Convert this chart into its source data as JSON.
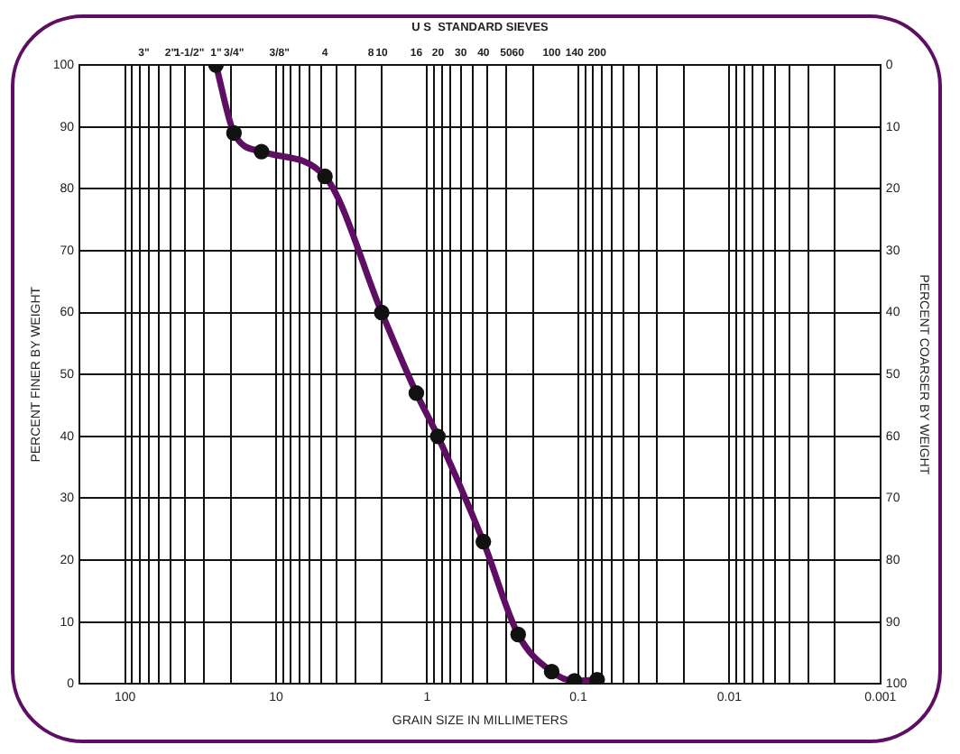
{
  "chart_data": {
    "type": "line",
    "xlabel": "GRAIN SIZE IN MILLIMETERS",
    "ylabel": "PERCENT FINER BY WEIGHT",
    "y2label": "PERCENT COARSER BY WEIGHT",
    "log": "x",
    "xlim": [
      200,
      0.001
    ],
    "xticks": [
      100,
      {
        "value": 90,
        "label": null
      },
      {
        "value": 80,
        "label": null
      },
      {
        "value": 70,
        "label": null
      },
      {
        "value": 60,
        "label": null
      },
      {
        "value": 50,
        "label": null
      },
      {
        "value": 40,
        "label": null
      },
      {
        "value": 30,
        "label": null
      },
      {
        "value": 20,
        "label": null
      },
      10,
      {
        "value": 9,
        "label": null
      },
      {
        "value": 8,
        "label": null
      },
      {
        "value": 7,
        "label": null
      },
      {
        "value": 6,
        "label": null
      },
      {
        "value": 5,
        "label": null
      },
      {
        "value": 4,
        "label": null
      },
      {
        "value": 3,
        "label": null
      },
      {
        "value": 2,
        "label": null
      },
      1,
      {
        "value": 0.9,
        "label": null
      },
      {
        "value": 0.8,
        "label": null
      },
      {
        "value": 0.7,
        "label": null
      },
      {
        "value": 0.6,
        "label": null
      },
      {
        "value": 0.5,
        "label": null
      },
      {
        "value": 0.4,
        "label": null
      },
      {
        "value": 0.3,
        "label": null
      },
      {
        "value": 0.2,
        "label": null
      },
      0.1,
      {
        "value": 0.09,
        "label": null
      },
      {
        "value": 0.08,
        "label": null
      },
      {
        "value": 0.07,
        "label": null
      },
      {
        "value": 0.06,
        "label": null
      },
      {
        "value": 0.05,
        "label": null
      },
      {
        "value": 0.04,
        "label": null
      },
      {
        "value": 0.03,
        "label": null
      },
      {
        "value": 0.02,
        "label": null
      },
      0.01,
      {
        "value": 0.009,
        "label": null
      },
      {
        "value": 0.008,
        "label": null
      },
      {
        "value": 0.007,
        "label": null
      },
      {
        "value": 0.006,
        "label": null
      },
      {
        "value": 0.005,
        "label": null
      },
      {
        "value": 0.004,
        "label": null
      },
      {
        "value": 0.003,
        "label": null
      },
      {
        "value": 0.002,
        "label": null
      },
      0.001
    ],
    "annotations": [
      "U S  STANDARD SIEVES",
      "3\"",
      "2\"",
      "1-1/2\"",
      "1\"",
      "3/4\"",
      "3/8\"",
      "4",
      "8",
      "10",
      "16",
      "20",
      "30",
      "40",
      "50",
      "60",
      "100",
      "140",
      "200"
    ],
    "ylim": [
      0,
      100
    ],
    "yticks": [
      0,
      10,
      20,
      30,
      40,
      50,
      60,
      70,
      80,
      90,
      100
    ],
    "y2lim": [
      100,
      0
    ],
    "y2ticks": [
      0,
      10,
      20,
      30,
      40,
      50,
      60,
      70,
      80,
      90,
      100
    ],
    "grid": true,
    "legend": false,
    "marker": "circle",
    "line_style": "solid",
    "series": [
      {
        "color": "#5e0f63",
        "x": [
          25,
          19,
          12.5,
          4.75,
          2,
          1.18,
          0.85,
          0.425,
          0.25,
          0.15,
          0.106,
          0.075
        ],
        "values": [
          100,
          89,
          86,
          82,
          60,
          47,
          40,
          23,
          8,
          2,
          0.5,
          0.7
        ]
      }
    ]
  }
}
